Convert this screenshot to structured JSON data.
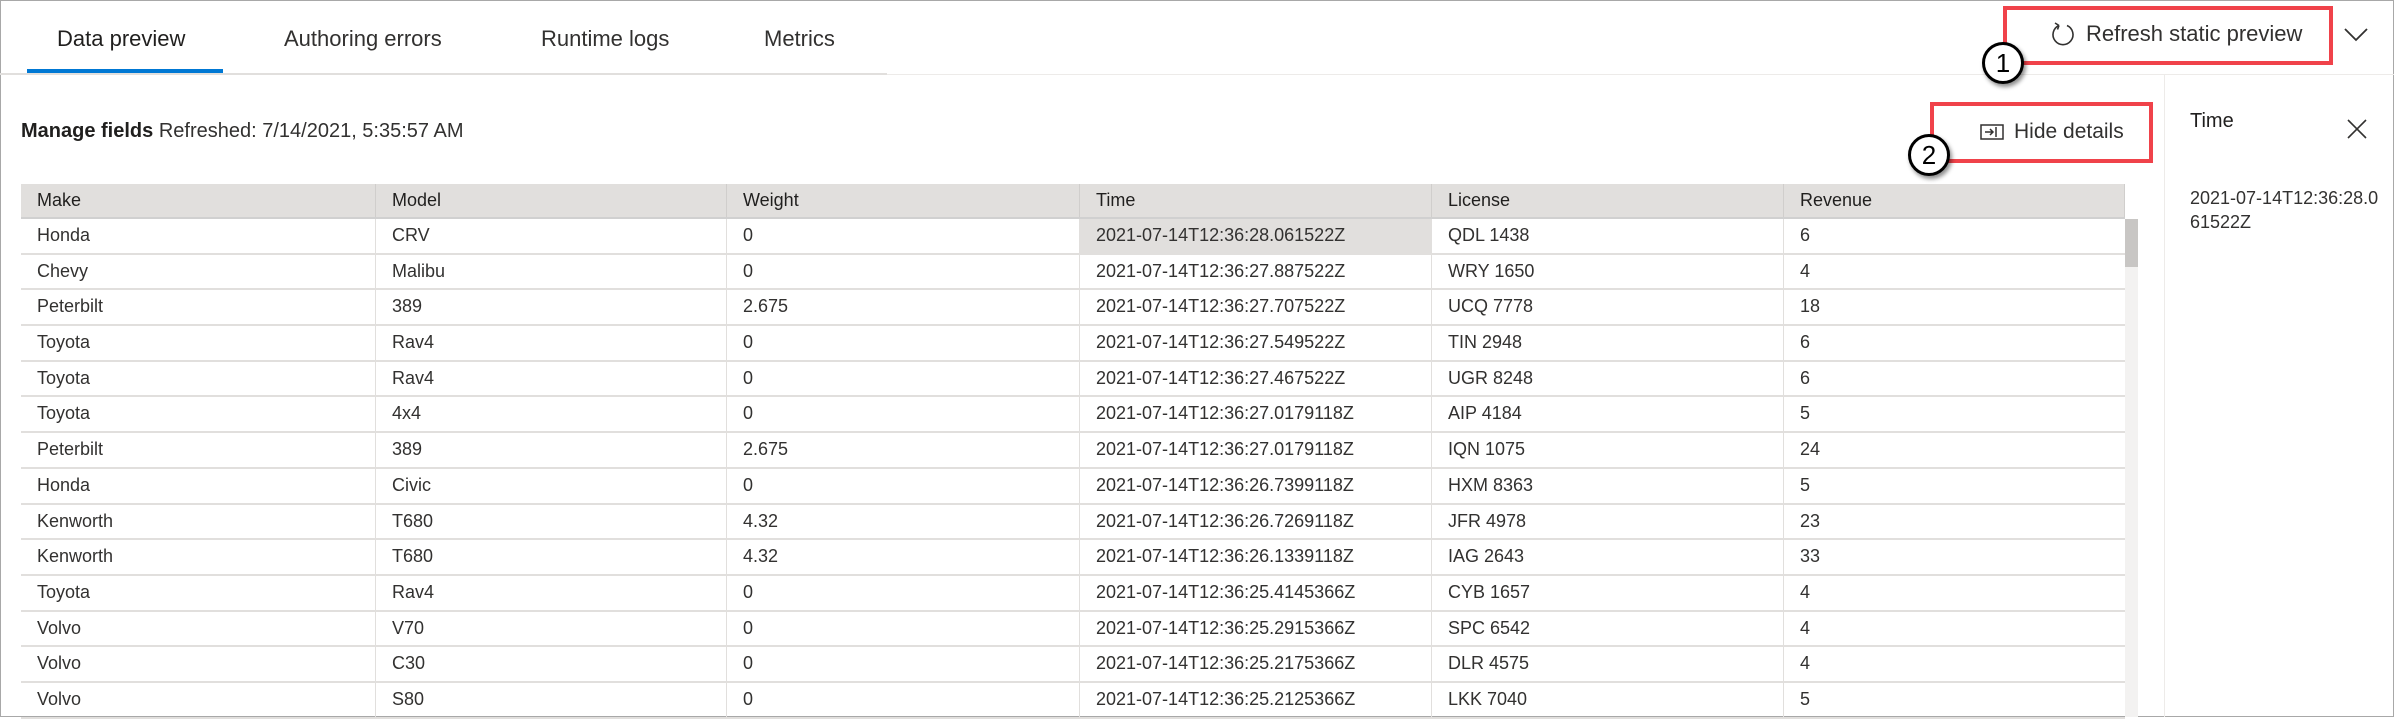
{
  "tabs": [
    {
      "label": "Data preview",
      "active": true
    },
    {
      "label": "Authoring errors"
    },
    {
      "label": "Runtime logs"
    },
    {
      "label": "Metrics"
    }
  ],
  "toolbar": {
    "refresh_label": "Refresh static preview",
    "refresh_icon": "refresh-icon",
    "expand_icon": "chevron-down-icon"
  },
  "header": {
    "manage_fields": "Manage fields",
    "refreshed": "Refreshed: 7/14/2021, 5:35:57 AM",
    "hide_details": "Hide details"
  },
  "callouts": [
    "1",
    "2"
  ],
  "colors": {
    "accent": "#0078d4",
    "callout_box": "#f0424a"
  },
  "table": {
    "columns": [
      "Make",
      "Model",
      "Weight",
      "Time",
      "License",
      "Revenue"
    ],
    "rows": [
      [
        "Honda",
        "CRV",
        "0",
        "2021-07-14T12:36:28.061522Z",
        "QDL 1438",
        "6"
      ],
      [
        "Chevy",
        "Malibu",
        "0",
        "2021-07-14T12:36:27.887522Z",
        "WRY 1650",
        "4"
      ],
      [
        "Peterbilt",
        "389",
        "2.675",
        "2021-07-14T12:36:27.707522Z",
        "UCQ 7778",
        "18"
      ],
      [
        "Toyota",
        "Rav4",
        "0",
        "2021-07-14T12:36:27.549522Z",
        "TIN 2948",
        "6"
      ],
      [
        "Toyota",
        "Rav4",
        "0",
        "2021-07-14T12:36:27.467522Z",
        "UGR 8248",
        "6"
      ],
      [
        "Toyota",
        "4x4",
        "0",
        "2021-07-14T12:36:27.0179118Z",
        "AIP 4184",
        "5"
      ],
      [
        "Peterbilt",
        "389",
        "2.675",
        "2021-07-14T12:36:27.0179118Z",
        "IQN 1075",
        "24"
      ],
      [
        "Honda",
        "Civic",
        "0",
        "2021-07-14T12:36:26.7399118Z",
        "HXM 8363",
        "5"
      ],
      [
        "Kenworth",
        "T680",
        "4.32",
        "2021-07-14T12:36:26.7269118Z",
        "JFR 4978",
        "23"
      ],
      [
        "Kenworth",
        "T680",
        "4.32",
        "2021-07-14T12:36:26.1339118Z",
        "IAG 2643",
        "33"
      ],
      [
        "Toyota",
        "Rav4",
        "0",
        "2021-07-14T12:36:25.4145366Z",
        "CYB 1657",
        "4"
      ],
      [
        "Volvo",
        "V70",
        "0",
        "2021-07-14T12:36:25.2915366Z",
        "SPC 6542",
        "4"
      ],
      [
        "Volvo",
        "C30",
        "0",
        "2021-07-14T12:36:25.2175366Z",
        "DLR 4575",
        "4"
      ],
      [
        "Volvo",
        "S80",
        "0",
        "2021-07-14T12:36:25.2125366Z",
        "LKK 7040",
        "5"
      ]
    ]
  },
  "details": {
    "title": "Time",
    "value": "2021-07-14T12:36:28.061522Z",
    "close_icon": "close-icon"
  }
}
